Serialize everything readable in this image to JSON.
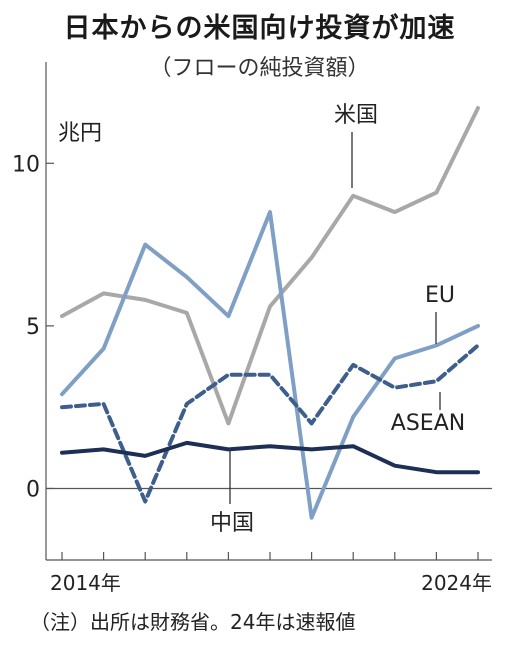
{
  "title": "日本からの米国向け投資が加速",
  "subtitle": "（フローの純投資額）",
  "note": "（注）出所は財務省。24年は速報値",
  "chart_data": {
    "type": "line",
    "unit_label": "兆円",
    "x": [
      2014,
      2015,
      2016,
      2017,
      2018,
      2019,
      2020,
      2021,
      2022,
      2023,
      2024
    ],
    "x_tick_labels": [
      "2014年",
      "2024年"
    ],
    "ylim": [
      -2.2,
      12.5
    ],
    "y_ticks": [
      0,
      5,
      10
    ],
    "grid": false,
    "series": [
      {
        "name": "米国",
        "color": "#a8a8a8",
        "dash": "solid",
        "values": [
          5.3,
          6.0,
          5.8,
          5.4,
          2.0,
          5.6,
          7.1,
          9.0,
          8.5,
          9.1,
          11.7
        ]
      },
      {
        "name": "EU",
        "color": "#7f9fc4",
        "dash": "solid",
        "values": [
          2.9,
          4.3,
          7.5,
          6.5,
          5.3,
          8.5,
          -0.9,
          2.2,
          4.0,
          4.4,
          5.0
        ]
      },
      {
        "name": "ASEAN",
        "color": "#3e5f8c",
        "dash": "dashed",
        "values": [
          2.5,
          2.6,
          -0.4,
          2.6,
          3.5,
          3.5,
          2.0,
          3.8,
          3.1,
          3.3,
          4.4
        ]
      },
      {
        "name": "中国",
        "color": "#1d2f55",
        "dash": "solid",
        "values": [
          1.1,
          1.2,
          1.0,
          1.4,
          1.2,
          1.3,
          1.2,
          1.3,
          0.7,
          0.5,
          0.5
        ]
      }
    ]
  }
}
